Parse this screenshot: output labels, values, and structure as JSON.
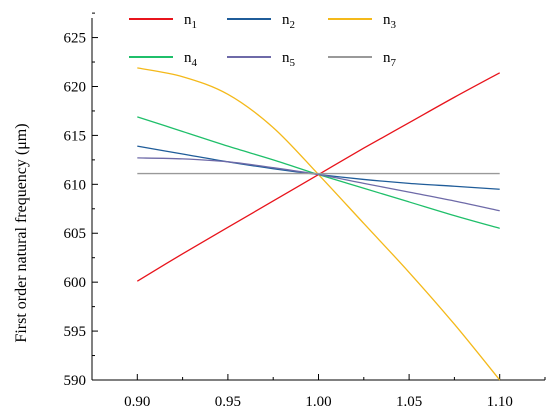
{
  "chart_data": {
    "type": "line",
    "title": "",
    "xlabel": "",
    "ylabel": "First order natural frequency (μm)",
    "xlim": [
      0.875,
      1.125
    ],
    "ylim": [
      590,
      627
    ],
    "grid": false,
    "legend_position": "top",
    "x_ticks": [
      "0.90",
      "0.95",
      "1.00",
      "1.05",
      "1.10"
    ],
    "x_tick_values": [
      0.9,
      0.95,
      1.0,
      1.05,
      1.1
    ],
    "y_ticks": [
      "590",
      "595",
      "600",
      "605",
      "610",
      "615",
      "620",
      "625"
    ],
    "y_tick_values": [
      590,
      595,
      600,
      605,
      610,
      615,
      620,
      625
    ],
    "x": [
      0.9,
      0.925,
      0.95,
      0.975,
      1.0,
      1.025,
      1.05,
      1.075,
      1.1
    ],
    "series": [
      {
        "name": "n1",
        "base": "n",
        "sub": "1",
        "color": "#e8141c",
        "values": [
          600.1,
          602.9,
          605.6,
          608.3,
          611.0,
          613.7,
          616.3,
          618.9,
          621.4
        ]
      },
      {
        "name": "n2",
        "base": "n",
        "sub": "2",
        "color": "#1f5c99",
        "values": [
          613.9,
          613.1,
          612.3,
          611.6,
          611.0,
          610.5,
          610.1,
          609.8,
          609.5
        ]
      },
      {
        "name": "n3",
        "base": "n",
        "sub": "3",
        "color": "#f4b91a",
        "values": [
          621.9,
          621.0,
          619.2,
          615.8,
          611.0,
          606.0,
          601.0,
          595.7,
          590.0
        ]
      },
      {
        "name": "n4",
        "base": "n",
        "sub": "4",
        "color": "#1fbf6a",
        "values": [
          616.9,
          615.4,
          613.9,
          612.5,
          611.0,
          609.6,
          608.2,
          606.8,
          605.5
        ]
      },
      {
        "name": "n5",
        "base": "n",
        "sub": "5",
        "color": "#6e6aa8",
        "values": [
          612.7,
          612.6,
          612.3,
          611.7,
          611.0,
          610.1,
          609.2,
          608.3,
          607.3
        ]
      },
      {
        "name": "n7",
        "base": "n",
        "sub": "7",
        "color": "#999999",
        "values": [
          611.1,
          611.1,
          611.1,
          611.1,
          611.1,
          611.1,
          611.1,
          611.1,
          611.1
        ]
      }
    ]
  }
}
